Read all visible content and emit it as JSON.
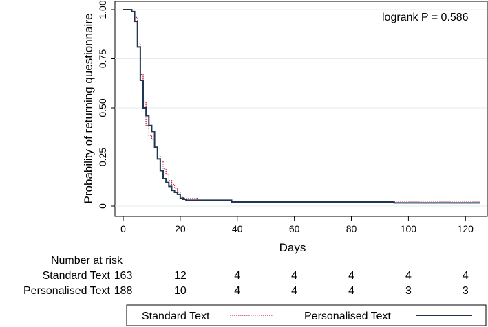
{
  "chart_data": {
    "type": "line",
    "subtype": "kaplan-meier step",
    "title": "",
    "annotation": "logrank P = 0.586",
    "xlabel": "Days",
    "ylabel": "Probability of returning questionnaire",
    "xlim": [
      0,
      125
    ],
    "ylim": [
      0,
      1
    ],
    "xticks": [
      "0",
      "20",
      "40",
      "60",
      "80",
      "100",
      "120"
    ],
    "yticks": [
      "0",
      "0.25",
      "0.50",
      "0.75",
      "1.00"
    ],
    "grid": "horizontal",
    "legend_position": "bottom",
    "series": [
      {
        "name": "Standard Text",
        "color": "#c0243c",
        "style": "dotted",
        "x": [
          0,
          3,
          4,
          5,
          6,
          7,
          8,
          9,
          10,
          11,
          12,
          13,
          14,
          15,
          16,
          17,
          18,
          19,
          20,
          21,
          26,
          38,
          125
        ],
        "y": [
          1.0,
          0.99,
          0.96,
          0.83,
          0.67,
          0.53,
          0.41,
          0.36,
          0.34,
          0.3,
          0.26,
          0.23,
          0.19,
          0.16,
          0.13,
          0.11,
          0.09,
          0.07,
          0.05,
          0.04,
          0.03,
          0.025,
          0.025
        ]
      },
      {
        "name": "Personalised Text",
        "color": "#1f3552",
        "style": "solid",
        "x": [
          0,
          3,
          4,
          5,
          6,
          7,
          8,
          9,
          10,
          11,
          12,
          13,
          14,
          15,
          16,
          17,
          18,
          19,
          20,
          21,
          22,
          38,
          95,
          125
        ],
        "y": [
          1.0,
          0.99,
          0.94,
          0.81,
          0.64,
          0.5,
          0.46,
          0.41,
          0.38,
          0.3,
          0.24,
          0.18,
          0.14,
          0.12,
          0.1,
          0.08,
          0.07,
          0.06,
          0.04,
          0.035,
          0.03,
          0.021,
          0.016,
          0.016
        ]
      }
    ],
    "risk_table": {
      "title": "Number at risk",
      "rows": [
        {
          "label": "Standard Text",
          "values": [
            "163",
            "12",
            "4",
            "4",
            "4",
            "4",
            "4"
          ]
        },
        {
          "label": "Personalised Text",
          "values": [
            "188",
            "10",
            "4",
            "4",
            "4",
            "3",
            "3"
          ]
        }
      ]
    }
  }
}
